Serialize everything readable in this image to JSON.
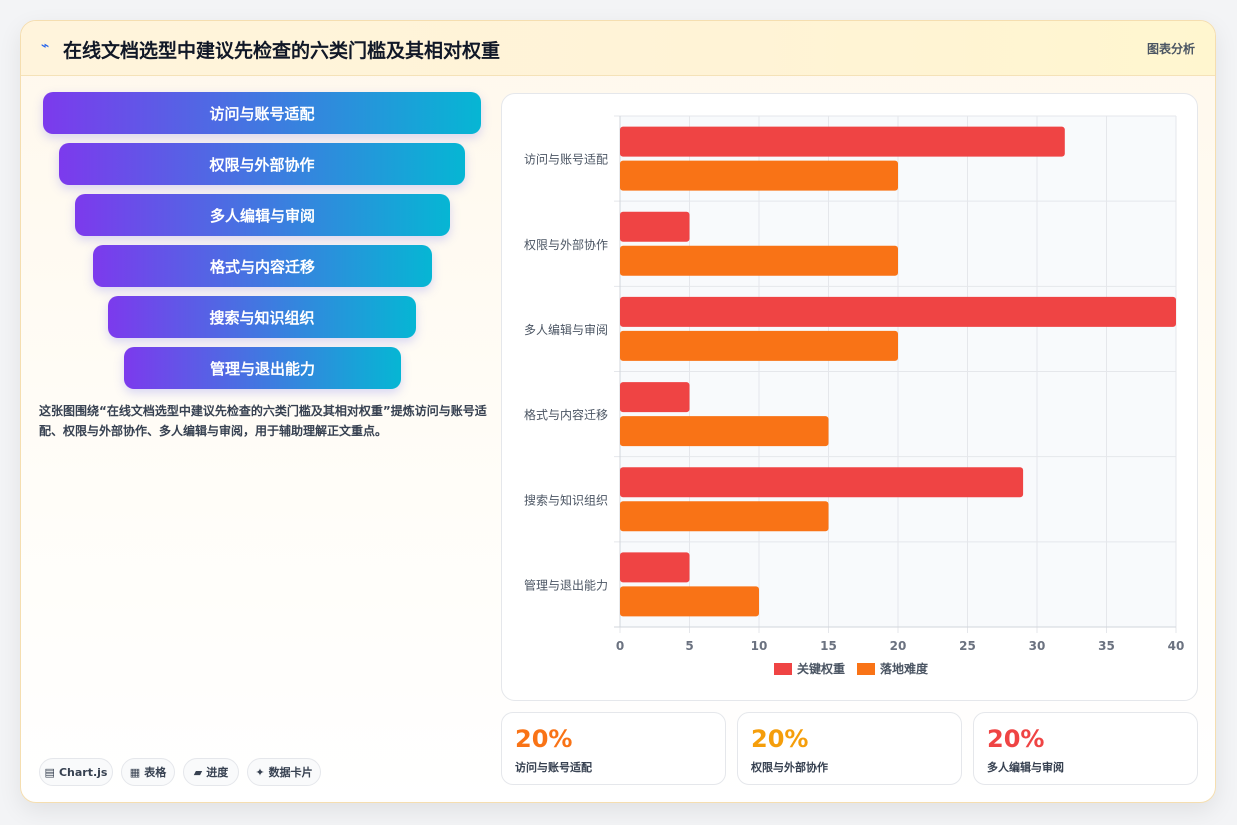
{
  "header": {
    "icon": "chart-line-icon",
    "title": "在线文档选型中建议先检查的六类门槛及其相对权重",
    "tag": "图表分析"
  },
  "funnel": [
    "访问与账号适配",
    "权限与外部协作",
    "多人编辑与审阅",
    "格式与内容迁移",
    "搜索与知识组织",
    "管理与退出能力"
  ],
  "description": "这张图围绕“在线文档选型中建议先检查的六类门槛及其相对权重”提炼访问与账号适配、权限与外部协作、多人编辑与审阅，用于辅助理解正文重点。",
  "pills": [
    {
      "icon": "▤",
      "label": "Chart.js"
    },
    {
      "icon": "▦",
      "label": "表格"
    },
    {
      "icon": "▰",
      "label": "进度"
    },
    {
      "icon": "✦",
      "label": "数据卡片"
    }
  ],
  "stats": [
    {
      "value": "20%",
      "label": "访问与账号适配",
      "color": "#f97316"
    },
    {
      "value": "20%",
      "label": "权限与外部协作",
      "color": "#f59e0b"
    },
    {
      "value": "20%",
      "label": "多人编辑与审阅",
      "color": "#ef4444"
    }
  ],
  "chart_data": {
    "type": "bar",
    "orientation": "horizontal",
    "categories": [
      "访问与账号适配",
      "权限与外部协作",
      "多人编辑与审阅",
      "格式与内容迁移",
      "搜索与知识组织",
      "管理与退出能力"
    ],
    "series": [
      {
        "name": "关键权重",
        "color": "#ef4444",
        "values": [
          32,
          5,
          40,
          5,
          29,
          5
        ]
      },
      {
        "name": "落地难度",
        "color": "#f97316",
        "values": [
          20,
          20,
          20,
          15,
          15,
          10
        ]
      }
    ],
    "xlim": [
      0,
      40
    ],
    "xticks": [
      0,
      5,
      10,
      15,
      20,
      25,
      30,
      35,
      40
    ],
    "grid": true,
    "legend": "bottom"
  }
}
